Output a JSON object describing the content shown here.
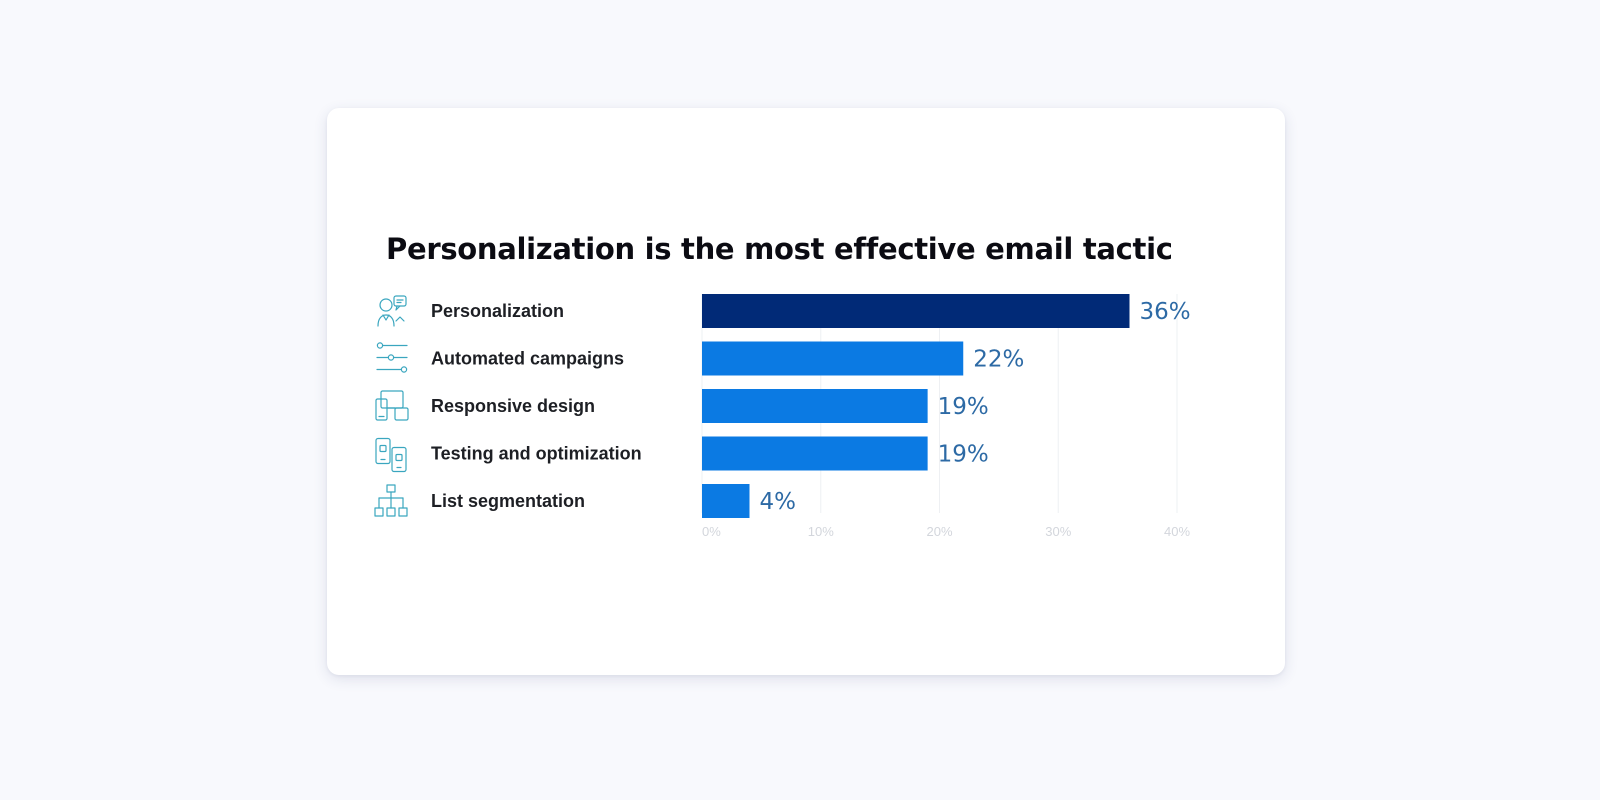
{
  "chart_data": {
    "type": "bar",
    "orientation": "horizontal",
    "title": "Personalization is the most effective email tactic",
    "categories": [
      "Personalization",
      "Automated campaigns",
      "Responsive design",
      "Testing and optimization",
      "List segmentation"
    ],
    "values": [
      36,
      22,
      19,
      19,
      4
    ],
    "value_labels": [
      "36%",
      "22%",
      "19%",
      "19%",
      "4%"
    ],
    "icons": [
      "person-chat-icon",
      "sliders-icon",
      "devices-icon",
      "mobile-test-icon",
      "org-tree-icon"
    ],
    "xlim": [
      0,
      40
    ],
    "x_ticks": [
      0,
      10,
      20,
      30,
      40
    ],
    "x_tick_labels": [
      "0%",
      "10%",
      "20%",
      "30%",
      "40%"
    ],
    "xlabel": "",
    "ylabel": "",
    "grid": true,
    "legend": "none",
    "colors": {
      "highlight_bar": "#012a77",
      "bar": "#0b7ae3",
      "value_text": "#2d6aa5",
      "icon": "#3aa6bf",
      "grid": "#eef0f3",
      "tick_text": "#d3d6dc"
    }
  }
}
